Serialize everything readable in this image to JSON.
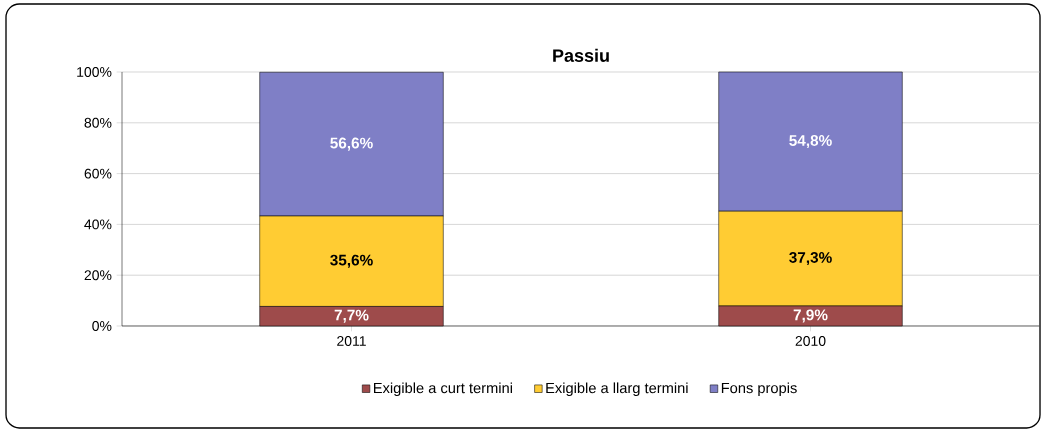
{
  "chart_data": {
    "type": "bar",
    "stacked": true,
    "title": "Passiu",
    "categories": [
      "2011",
      "2010"
    ],
    "series": [
      {
        "name": "Exigible a curt termini",
        "color": "#9e4b4b",
        "values": [
          7.7,
          7.9
        ],
        "value_labels": [
          "7,7%",
          "7,9%"
        ]
      },
      {
        "name": "Exigible a llarg termini",
        "color": "#ffcc33",
        "values": [
          35.6,
          37.3
        ],
        "value_labels": [
          "35,6%",
          "37,3%"
        ]
      },
      {
        "name": "Fons propis",
        "color": "#7f7fc6",
        "values": [
          56.6,
          54.8
        ],
        "value_labels": [
          "56,6%",
          "54,8%"
        ]
      }
    ],
    "ylim": [
      0,
      100
    ],
    "yticks": [
      {
        "value": 0,
        "label": "0%"
      },
      {
        "value": 20,
        "label": "20%"
      },
      {
        "value": 40,
        "label": "40%"
      },
      {
        "value": 60,
        "label": "60%"
      },
      {
        "value": 80,
        "label": "80%"
      },
      {
        "value": 100,
        "label": "100%"
      }
    ],
    "grid": "y",
    "legend": "bottom"
  }
}
